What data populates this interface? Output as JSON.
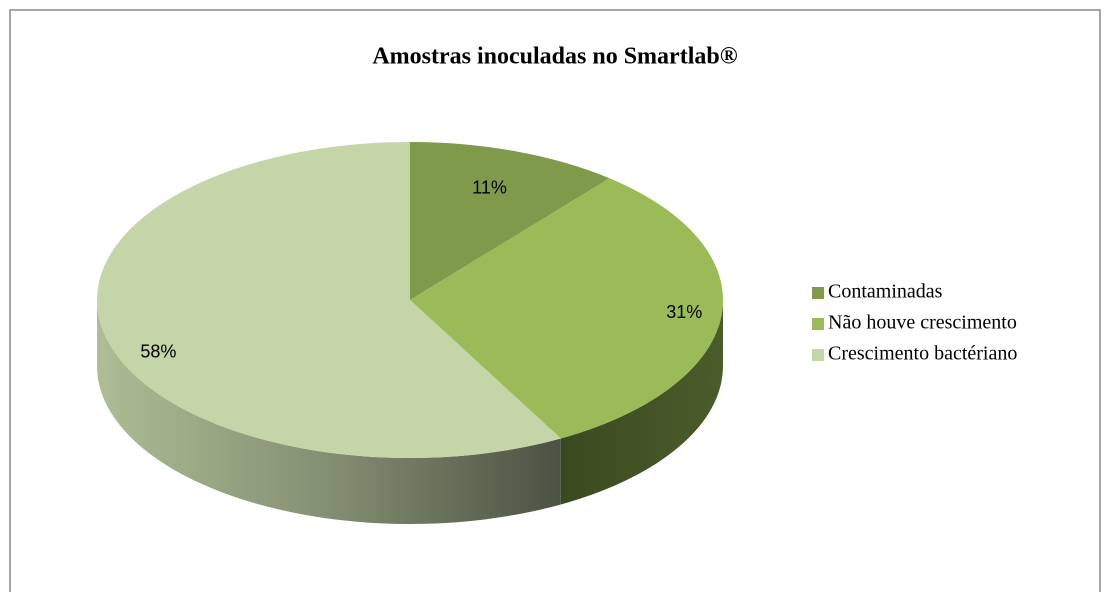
{
  "chart_data": {
    "type": "pie",
    "title": "Amostras inoculadas no Smartlab®",
    "categories": [
      "Contaminadas",
      "Não houve crescimento",
      "Crescimento bactériano"
    ],
    "values": [
      11,
      31,
      58
    ],
    "value_labels": [
      "11%",
      "31%",
      "58%"
    ],
    "colors": [
      "#7f9a4a",
      "#9bbb59",
      "#c4d5a8"
    ],
    "legend": "right"
  }
}
